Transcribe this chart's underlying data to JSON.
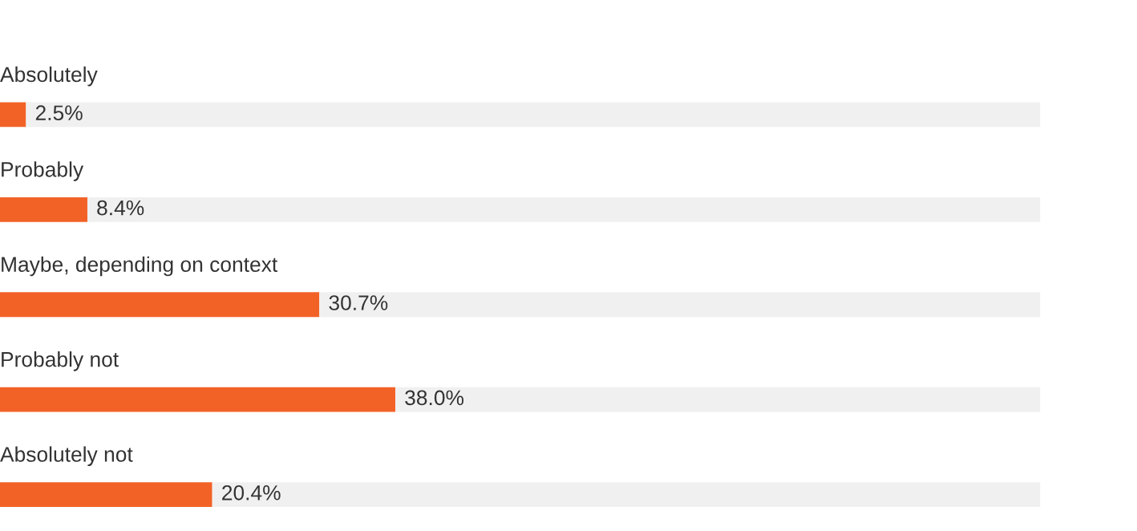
{
  "chart_data": {
    "type": "bar",
    "orientation": "horizontal",
    "stacked": true,
    "categories": [
      "Absolutely",
      "Probably",
      "Maybe, depending on context",
      "Probably not",
      "Absolutely not"
    ],
    "series": [
      {
        "color": "#f26227",
        "values": [
          2.5,
          8.4,
          30.7,
          38.0,
          20.4
        ],
        "value_labels": [
          "2.5%",
          "8.4%",
          "30.7%",
          "38.0%",
          "20.4%"
        ]
      },
      {
        "color": "#f0f0f0",
        "values": [
          97.5,
          91.6,
          69.3,
          62.0,
          79.6
        ]
      }
    ],
    "xlim": [
      0,
      100
    ],
    "tick_labels": false,
    "grid": false,
    "legend": false
  }
}
